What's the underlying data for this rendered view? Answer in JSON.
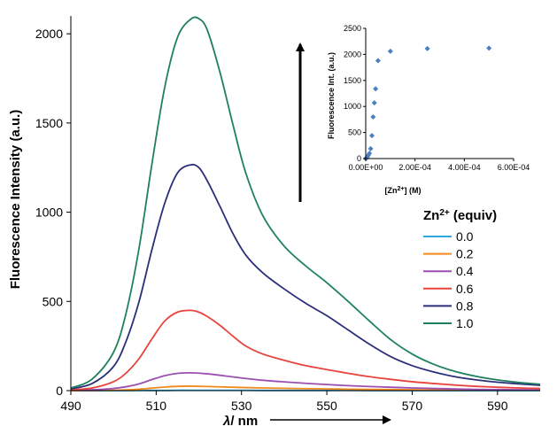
{
  "chart_data": [
    {
      "type": "line",
      "xlabel_italic": "λ",
      "xlabel_unit": "/ nm",
      "ylabel": "Fluorescence Intensity (a.u.)",
      "xlim": [
        490,
        600
      ],
      "ylim": [
        0,
        2100
      ],
      "x_ticks": [
        "490",
        "510",
        "530",
        "550",
        "570",
        "590"
      ],
      "y_ticks": [
        "0",
        "500",
        "1000",
        "1500",
        "2000"
      ],
      "legend_title_prefix": "Zn",
      "legend_title_sup": "2+",
      "legend_title_suffix": " (equiv)",
      "legend_position": "right",
      "x": [
        490,
        495,
        500,
        503,
        506,
        509,
        512,
        515,
        518,
        520,
        522,
        525,
        528,
        531,
        535,
        540,
        545,
        550,
        555,
        560,
        565,
        570,
        575,
        580,
        585,
        590,
        595,
        600
      ],
      "series": [
        {
          "name": "0.0",
          "color": "#2ea8e0",
          "values": [
            0,
            0,
            0,
            0,
            1,
            1,
            1,
            2,
            2,
            2,
            2,
            2,
            2,
            2,
            1,
            1,
            1,
            1,
            1,
            0,
            0,
            0,
            0,
            0,
            0,
            0,
            0,
            0
          ]
        },
        {
          "name": "0.2",
          "color": "#f28a1e",
          "values": [
            0,
            1,
            2,
            4,
            8,
            14,
            20,
            24,
            25,
            24,
            23,
            21,
            19,
            17,
            15,
            13,
            11,
            10,
            8,
            7,
            6,
            5,
            4,
            3,
            3,
            2,
            2,
            2
          ]
        },
        {
          "name": "0.4",
          "color": "#9b4fb0",
          "values": [
            2,
            5,
            12,
            22,
            38,
            62,
            84,
            97,
            100,
            98,
            94,
            86,
            77,
            68,
            58,
            49,
            41,
            34,
            28,
            23,
            19,
            15,
            12,
            9,
            7,
            6,
            5,
            4
          ]
        },
        {
          "name": "0.6",
          "color": "#e8433c",
          "values": [
            5,
            15,
            50,
            100,
            180,
            290,
            390,
            440,
            450,
            440,
            415,
            365,
            305,
            250,
            205,
            170,
            140,
            118,
            97,
            78,
            63,
            50,
            40,
            31,
            24,
            19,
            15,
            12
          ]
        },
        {
          "name": "0.8",
          "color": "#2b2f7a",
          "values": [
            10,
            40,
            135,
            280,
            500,
            790,
            1050,
            1220,
            1265,
            1250,
            1175,
            1030,
            880,
            760,
            660,
            570,
            490,
            420,
            340,
            260,
            190,
            140,
            105,
            78,
            60,
            47,
            38,
            30
          ]
        },
        {
          "name": "1.0",
          "color": "#1f8060",
          "values": [
            15,
            65,
            215,
            440,
            800,
            1270,
            1700,
            1980,
            2080,
            2085,
            2020,
            1780,
            1490,
            1220,
            980,
            810,
            700,
            605,
            500,
            390,
            285,
            205,
            148,
            108,
            80,
            60,
            46,
            36
          ]
        }
      ]
    },
    {
      "type": "scatter",
      "xlabel_prefix": "[Zn",
      "xlabel_sup": "2+",
      "xlabel_suffix": "] (M)",
      "ylabel": "Fluorescence Int. (a.u.)",
      "xlim": [
        0,
        0.0006
      ],
      "ylim": [
        0,
        2500
      ],
      "x_ticks": [
        "0.00E+00",
        "2.00E-04",
        "4.00E-04",
        "6.00E-04"
      ],
      "y_ticks": [
        "0",
        "500",
        "1000",
        "1500",
        "2000",
        "2500"
      ],
      "marker_color": "#4a7fc1",
      "points": [
        {
          "x": 0,
          "y": 0
        },
        {
          "x": 3e-06,
          "y": 10
        },
        {
          "x": 6e-06,
          "y": 30
        },
        {
          "x": 1e-05,
          "y": 60
        },
        {
          "x": 1.5e-05,
          "y": 100
        },
        {
          "x": 2e-05,
          "y": 190
        },
        {
          "x": 2.5e-05,
          "y": 440
        },
        {
          "x": 3e-05,
          "y": 800
        },
        {
          "x": 3.5e-05,
          "y": 1070
        },
        {
          "x": 4e-05,
          "y": 1340
        },
        {
          "x": 5e-05,
          "y": 1880
        },
        {
          "x": 0.0001,
          "y": 2060
        },
        {
          "x": 0.00025,
          "y": 2110
        },
        {
          "x": 0.0005,
          "y": 2120
        }
      ]
    }
  ]
}
